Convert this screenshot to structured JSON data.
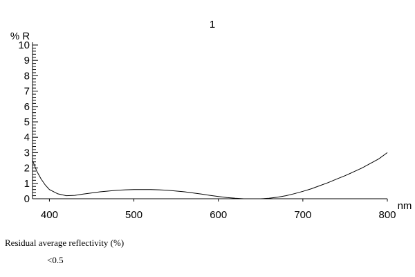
{
  "chart_data": {
    "type": "line",
    "title": "1",
    "xlabel": "nm",
    "ylabel": "% R",
    "xlim": [
      380,
      800
    ],
    "ylim": [
      0,
      10
    ],
    "x_ticks": [
      400,
      500,
      600,
      700,
      800
    ],
    "y_ticks": [
      0,
      1,
      2,
      3,
      4,
      5,
      6,
      7,
      8,
      9,
      10
    ],
    "grid": false,
    "series": [
      {
        "x": [
          380,
          385,
          390,
          395,
          400,
          410,
          420,
          430,
          440,
          450,
          460,
          470,
          480,
          490,
          500,
          510,
          520,
          530,
          540,
          550,
          560,
          570,
          580,
          590,
          600,
          610,
          620,
          630,
          640,
          650,
          660,
          670,
          680,
          690,
          700,
          710,
          720,
          730,
          740,
          750,
          760,
          770,
          780,
          790,
          800
        ],
        "y": [
          2.5,
          1.8,
          1.3,
          0.9,
          0.6,
          0.32,
          0.2,
          0.22,
          0.3,
          0.38,
          0.45,
          0.5,
          0.55,
          0.58,
          0.6,
          0.6,
          0.6,
          0.58,
          0.55,
          0.5,
          0.45,
          0.38,
          0.3,
          0.22,
          0.15,
          0.08,
          0.03,
          0.0,
          0.0,
          0.0,
          0.03,
          0.1,
          0.2,
          0.33,
          0.48,
          0.65,
          0.85,
          1.05,
          1.28,
          1.5,
          1.75,
          2.0,
          2.3,
          2.6,
          3.0
        ]
      }
    ]
  },
  "caption": {
    "label": "Residual average reflectivity (%)",
    "value": "<0.5"
  }
}
